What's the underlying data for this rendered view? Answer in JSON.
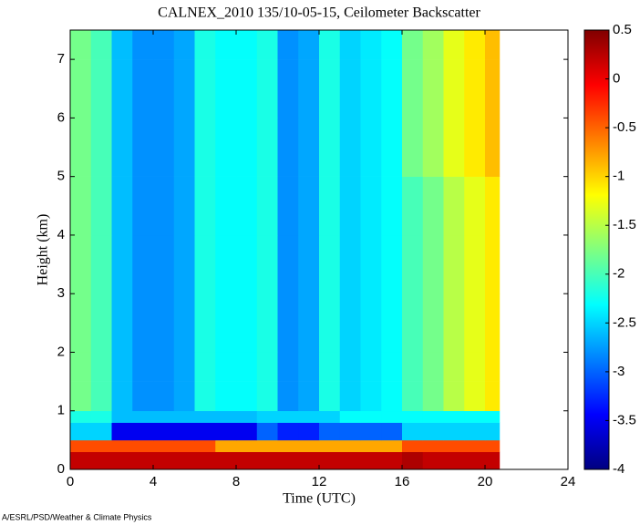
{
  "chart_data": {
    "type": "heatmap",
    "title": "CALNEX_2010 135/10-05-15, Ceilometer Backscatter",
    "xlabel": "Time (UTC)",
    "ylabel": "Height (km)",
    "footer": "A/ESRL/PSD/Weather & Climate Physics",
    "xlim": [
      0,
      24
    ],
    "xticks": [
      0,
      4,
      8,
      12,
      16,
      20,
      24
    ],
    "ylim": [
      0,
      7.5
    ],
    "yticks": [
      0,
      1,
      2,
      3,
      4,
      5,
      6,
      7
    ],
    "colormap": "jet",
    "clim": [
      -4,
      0.5
    ],
    "cticks": [
      0.5,
      0,
      -0.5,
      -1,
      -1.5,
      -2,
      -2.5,
      -3,
      -3.5,
      -4
    ],
    "x_edges": [
      0,
      1,
      2,
      3,
      4,
      5,
      6,
      7,
      8,
      9,
      10,
      11,
      12,
      13,
      14,
      15,
      16,
      17,
      18,
      19,
      20,
      20.7
    ],
    "y_edges": [
      0,
      0.3,
      0.5,
      0.8,
      1,
      1.5,
      2,
      3,
      4,
      5,
      6,
      7,
      7.5
    ],
    "z": [
      [
        0.2,
        0.2,
        0.2,
        0.2,
        0.2,
        0.2,
        0.2,
        0.2,
        0.2,
        0.2,
        0.2,
        0.2,
        0.2,
        0.2,
        0.2,
        0.2,
        0.3,
        0.2,
        0.2,
        0.2,
        0.2
      ],
      [
        -0.4,
        -0.4,
        -0.4,
        -0.4,
        -0.4,
        -0.4,
        -0.4,
        -0.8,
        -0.8,
        -0.8,
        -0.8,
        -0.8,
        -0.8,
        -0.8,
        -0.8,
        -0.8,
        -0.4,
        -0.4,
        -0.4,
        -0.4,
        -0.4
      ],
      [
        -2.5,
        -2.5,
        -3.5,
        -3.5,
        -3.5,
        -3.5,
        -3.5,
        -3.5,
        -3.5,
        -3.0,
        -3.3,
        -3.3,
        -3.0,
        -3.0,
        -3.0,
        -3.0,
        -2.5,
        -2.5,
        -2.5,
        -2.5,
        -2.5
      ],
      [
        -2.2,
        -2.2,
        -2.6,
        -2.6,
        -2.6,
        -2.6,
        -2.6,
        -2.6,
        -2.6,
        -2.5,
        -2.5,
        -2.5,
        -2.5,
        -2.3,
        -2.3,
        -2.3,
        -2.3,
        -2.3,
        -2.3,
        -2.3,
        -2.3
      ],
      [
        -1.8,
        -2.0,
        -2.6,
        -2.8,
        -2.8,
        -2.7,
        -2.2,
        -2.3,
        -2.3,
        -2.2,
        -2.8,
        -2.7,
        -2.2,
        -2.5,
        -2.4,
        -2.3,
        -2.0,
        -1.8,
        -1.5,
        -1.3,
        -1.1
      ],
      [
        -1.8,
        -2.0,
        -2.6,
        -2.8,
        -2.8,
        -2.7,
        -2.2,
        -2.3,
        -2.3,
        -2.2,
        -2.8,
        -2.7,
        -2.2,
        -2.5,
        -2.4,
        -2.3,
        -2.0,
        -1.8,
        -1.5,
        -1.3,
        -1.1
      ],
      [
        -1.8,
        -2.0,
        -2.6,
        -2.8,
        -2.8,
        -2.7,
        -2.2,
        -2.3,
        -2.3,
        -2.2,
        -2.8,
        -2.7,
        -2.2,
        -2.5,
        -2.4,
        -2.3,
        -2.0,
        -1.8,
        -1.5,
        -1.3,
        -1.1
      ],
      [
        -1.8,
        -2.0,
        -2.6,
        -2.8,
        -2.8,
        -2.7,
        -2.2,
        -2.3,
        -2.3,
        -2.2,
        -2.8,
        -2.7,
        -2.2,
        -2.5,
        -2.4,
        -2.3,
        -2.0,
        -1.8,
        -1.5,
        -1.3,
        -1.1
      ],
      [
        -1.8,
        -2.0,
        -2.6,
        -2.8,
        -2.8,
        -2.7,
        -2.2,
        -2.3,
        -2.3,
        -2.2,
        -2.8,
        -2.7,
        -2.2,
        -2.5,
        -2.4,
        -2.3,
        -2.0,
        -1.8,
        -1.5,
        -1.3,
        -1.1
      ],
      [
        -1.8,
        -2.0,
        -2.6,
        -2.8,
        -2.8,
        -2.7,
        -2.2,
        -2.3,
        -2.3,
        -2.2,
        -2.8,
        -2.7,
        -2.2,
        -2.5,
        -2.4,
        -2.3,
        -1.8,
        -1.6,
        -1.3,
        -1.1,
        -0.9
      ],
      [
        -1.8,
        -2.0,
        -2.6,
        -2.8,
        -2.8,
        -2.7,
        -2.2,
        -2.3,
        -2.3,
        -2.2,
        -2.8,
        -2.7,
        -2.2,
        -2.5,
        -2.4,
        -2.3,
        -1.8,
        -1.6,
        -1.3,
        -1.1,
        -0.9
      ],
      [
        -1.8,
        -2.0,
        -2.6,
        -2.8,
        -2.8,
        -2.7,
        -2.2,
        -2.3,
        -2.3,
        -2.2,
        -2.8,
        -2.7,
        -2.2,
        -2.5,
        -2.4,
        -2.3,
        -1.8,
        -1.6,
        -1.3,
        -1.1,
        -0.9
      ]
    ]
  }
}
